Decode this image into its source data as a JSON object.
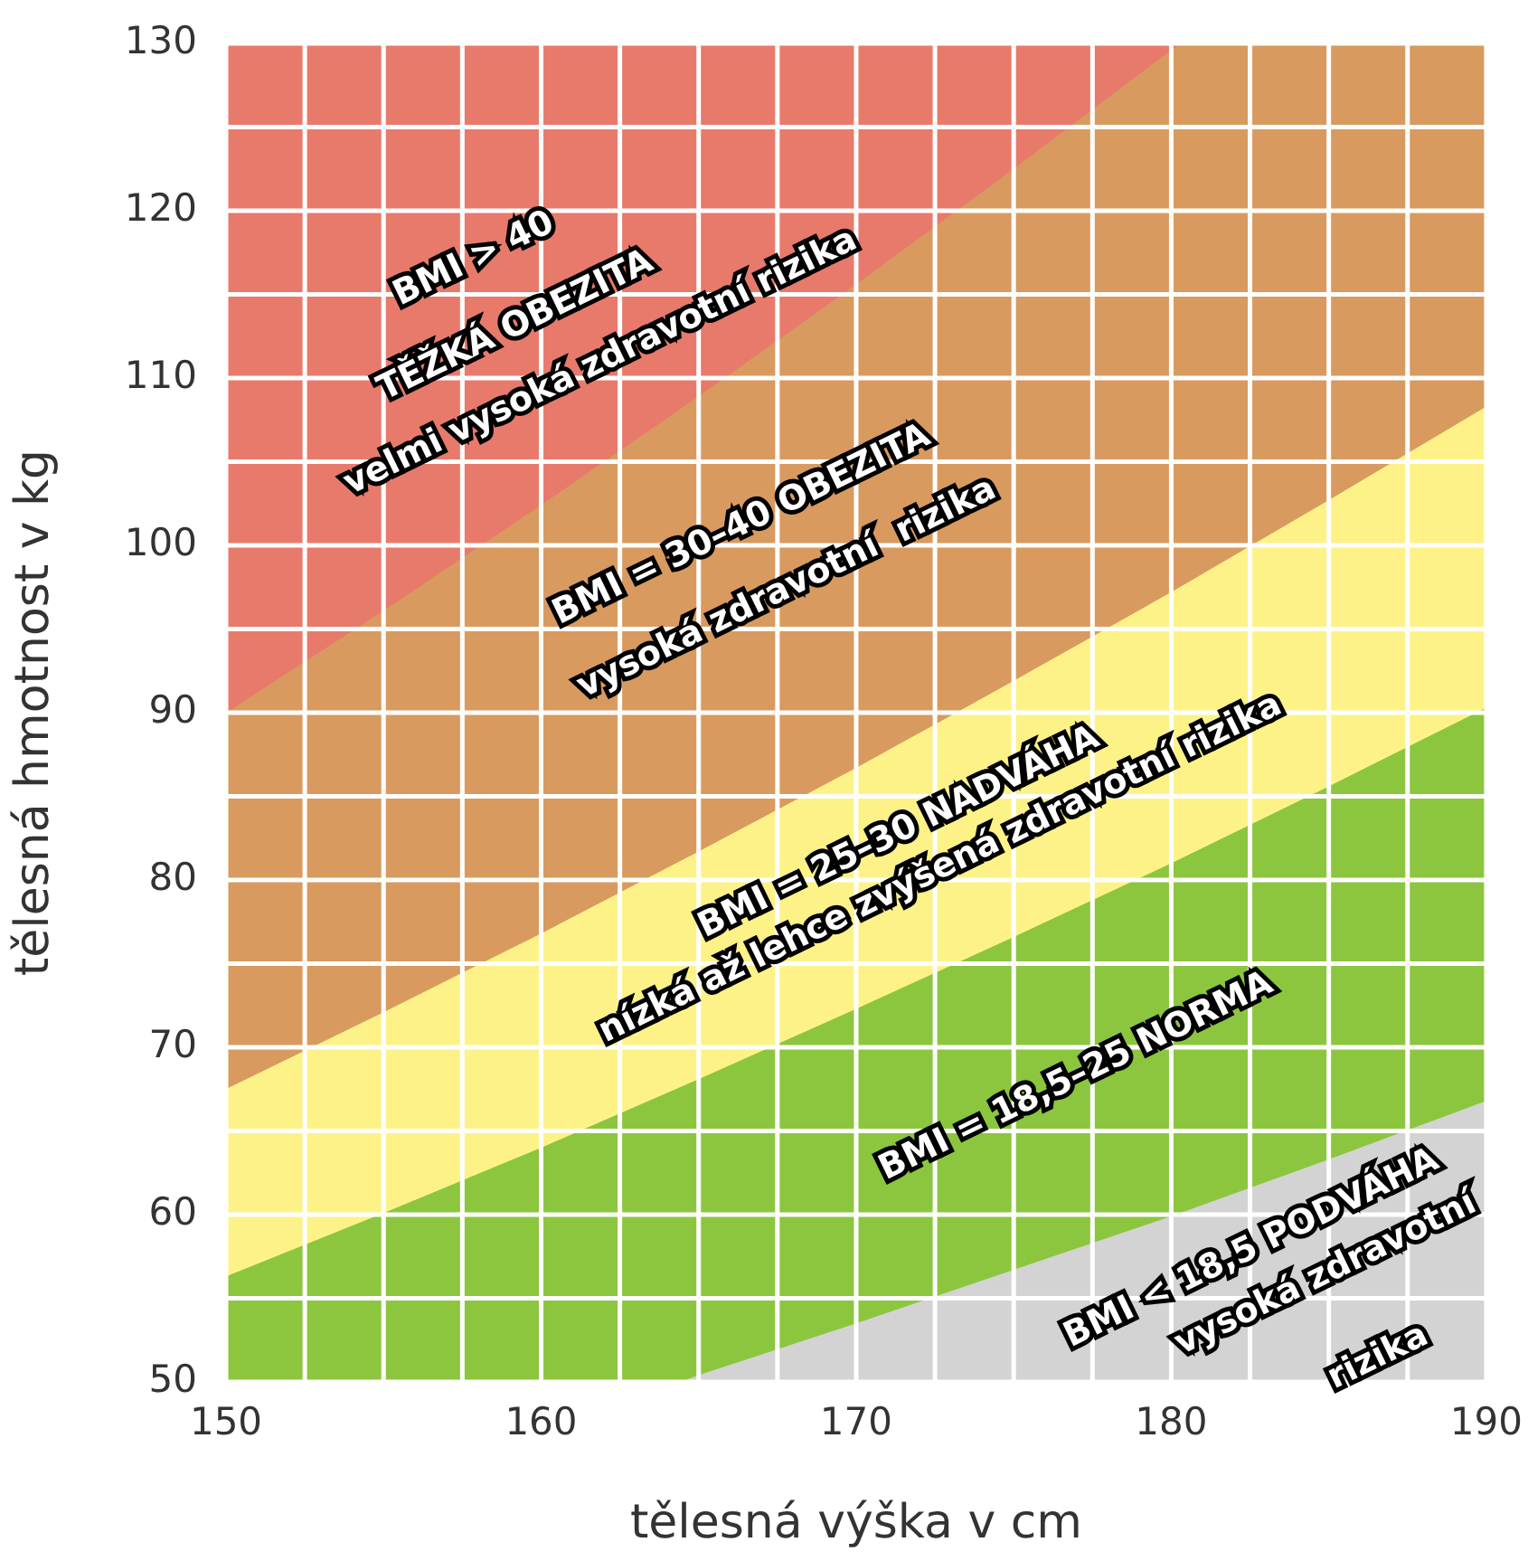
{
  "chart_data": {
    "type": "area",
    "xlabel": "tělesná výška v cm",
    "ylabel": "tělesná hmotnost v kg",
    "xlim": [
      150,
      190
    ],
    "ylim": [
      50,
      130
    ],
    "xticks": [
      150,
      {
        "value": 152.5,
        "label": null
      },
      {
        "value": 155,
        "label": null
      },
      {
        "value": 157.5,
        "label": null
      },
      160,
      {
        "value": 162.5,
        "label": null
      },
      {
        "value": 165,
        "label": null
      },
      {
        "value": 167.5,
        "label": null
      },
      170,
      {
        "value": 172.5,
        "label": null
      },
      {
        "value": 175,
        "label": null
      },
      {
        "value": 177.5,
        "label": null
      },
      180,
      {
        "value": 182.5,
        "label": null
      },
      {
        "value": 185,
        "label": null
      },
      {
        "value": 187.5,
        "label": null
      },
      190
    ],
    "yticks": [
      50,
      {
        "value": 55,
        "label": null
      },
      60,
      {
        "value": 65,
        "label": null
      },
      70,
      {
        "value": 75,
        "label": null
      },
      80,
      {
        "value": 85,
        "label": null
      },
      90,
      {
        "value": 95,
        "label": null
      },
      100,
      {
        "value": 105,
        "label": null
      },
      110,
      {
        "value": 115,
        "label": null
      },
      120,
      {
        "value": 125,
        "label": null
      },
      130
    ],
    "grid": true,
    "legend": false,
    "series": [
      {
        "color": "#d3d3d3",
        "x": [
          164.4,
          165,
          170,
          175,
          180,
          185,
          190
        ],
        "values": [
          50,
          50.4,
          53.5,
          56.7,
          59.9,
          63.3,
          66.8
        ]
      },
      {
        "color": "#8cc63f",
        "x": [
          150,
          155,
          160,
          165,
          170,
          175,
          180,
          185,
          190
        ],
        "values": [
          56.3,
          60.1,
          64.0,
          68.1,
          72.3,
          76.6,
          81.0,
          85.6,
          90.3
        ]
      },
      {
        "color": "#fdf288",
        "x": [
          150,
          155,
          160,
          165,
          170,
          175,
          180,
          185,
          190
        ],
        "values": [
          67.5,
          72.1,
          76.8,
          81.7,
          86.7,
          91.9,
          97.2,
          102.7,
          108.3
        ]
      },
      {
        "color": "#d99a5f",
        "x": [
          150,
          155,
          160,
          165,
          170,
          175,
          180,
          180.3,
          190
        ],
        "values": [
          90,
          96.1,
          102.4,
          108.9,
          115.6,
          122.5,
          129.6,
          130,
          130
        ]
      },
      {
        "color": "#e87a6c",
        "x": [
          150,
          180.3
        ],
        "values": [
          130,
          130
        ]
      }
    ],
    "annotations": [
      "BMI > 40",
      "TĚŽKÁ OBEZITA",
      "velmi vysoká zdravotní rizika",
      "BMI = 30–40 OBEZITA",
      "vysoká zdravotní  rizika",
      "BMI = 25–30 NADVÁHA",
      "nízká až lehce zvýšená zdravotní rizika",
      "BMI = 18,5–25 NORMA",
      "BMI < 18,5 PODVÁHA",
      "vysoká zdravotní",
      "rizika"
    ]
  }
}
